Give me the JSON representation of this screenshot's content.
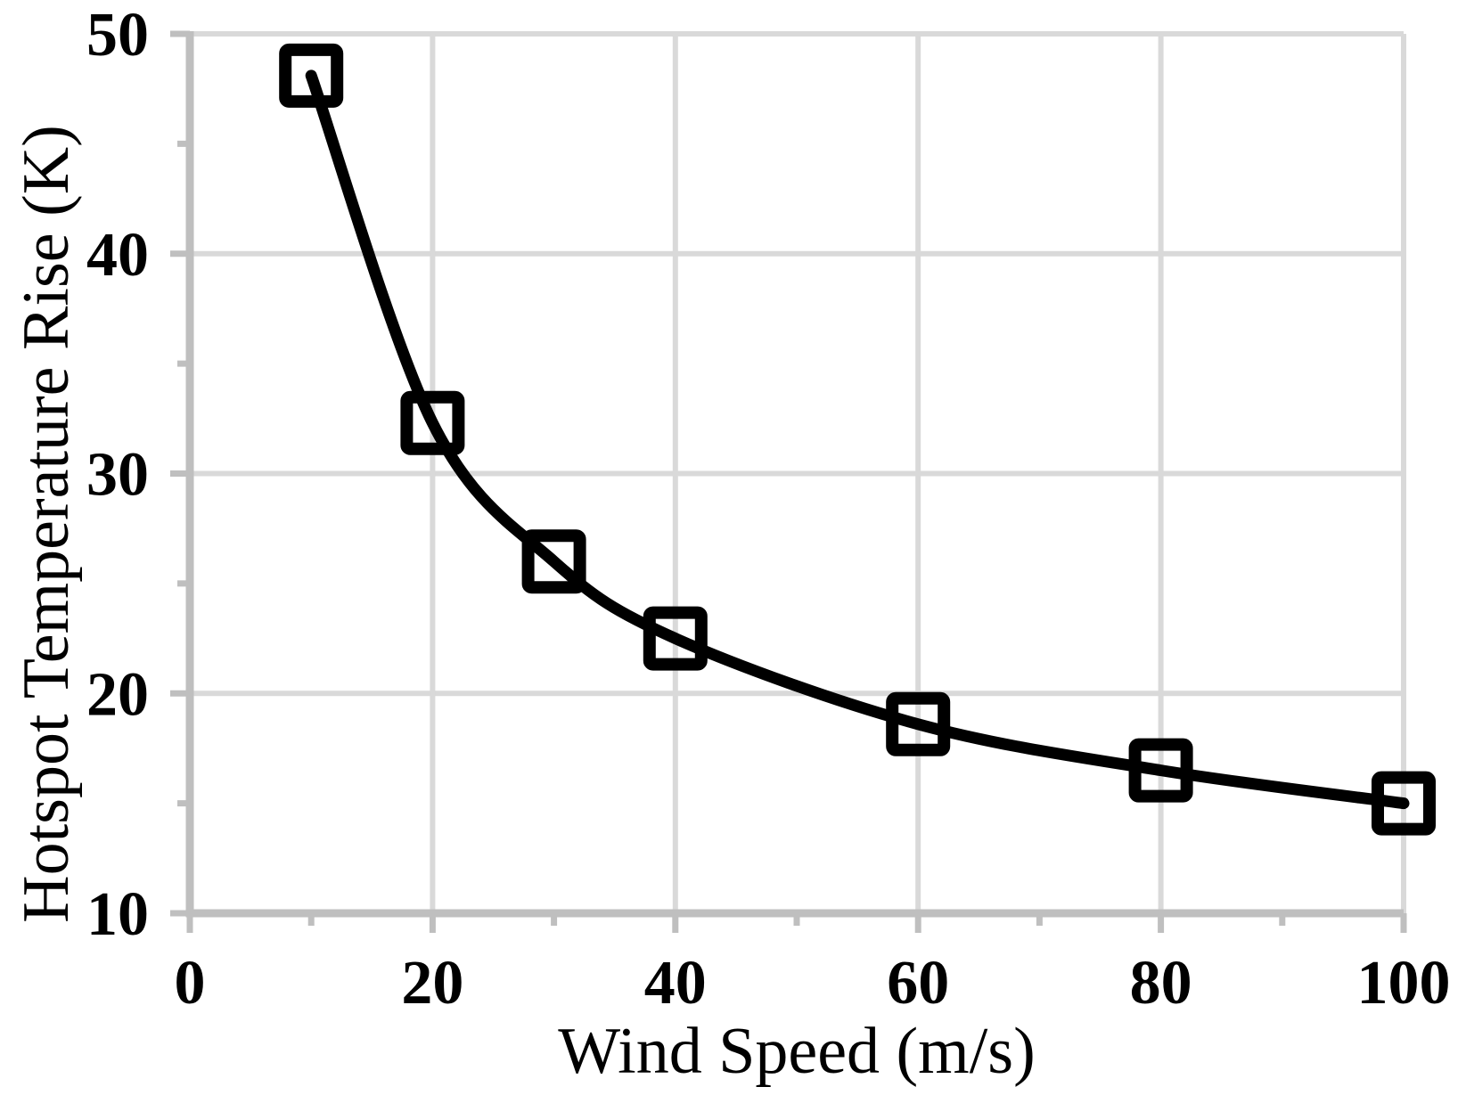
{
  "chart_data": {
    "type": "line",
    "title": "",
    "xlabel": "Wind Speed (m/s)",
    "ylabel": "Hotspot Temperature Rise (K)",
    "xlim": [
      0,
      100
    ],
    "ylim": [
      10,
      50
    ],
    "x": [
      10,
      20,
      30,
      40,
      60,
      80,
      100
    ],
    "series": [
      {
        "name": "Hotspot Temperature Rise",
        "values": [
          48.1,
          32.3,
          26.0,
          22.5,
          18.6,
          16.5,
          15.0
        ]
      }
    ],
    "x_major_ticks": [
      0,
      20,
      40,
      60,
      80,
      100
    ],
    "x_minor_ticks": [
      10,
      30,
      50,
      70,
      90
    ],
    "y_major_ticks": [
      10,
      20,
      30,
      40,
      50
    ],
    "y_minor_ticks": [
      15,
      25,
      35,
      45
    ],
    "x_tick_labels": [
      "0",
      "20",
      "40",
      "60",
      "80",
      "100"
    ],
    "y_tick_labels": [
      "10",
      "20",
      "30",
      "40",
      "50"
    ],
    "gridlines": {
      "vertical_x": [
        20,
        40,
        60,
        80,
        100
      ],
      "horizontal_y": [
        20,
        30,
        40,
        50
      ]
    },
    "legend": "none",
    "marker": "open-square",
    "smooth": true,
    "colors": {
      "series": "#000000",
      "gridline": "#d9d9d9",
      "axis": "#bfbfbf",
      "text": "#000000",
      "background": "#ffffff"
    }
  }
}
